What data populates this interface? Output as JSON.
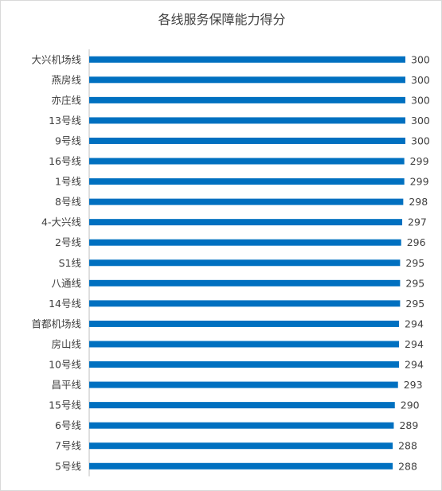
{
  "chart_data": {
    "type": "bar",
    "orientation": "horizontal",
    "title": "各线服务保障能力得分",
    "xlabel": "",
    "ylabel": "",
    "xlim": [
      0,
      300
    ],
    "grid": false,
    "legend": "none",
    "bar_color": "#0070C0",
    "categories": [
      "大兴机场线",
      "燕房线",
      "亦庄线",
      "13号线",
      "9号线",
      "16号线",
      "1号线",
      "8号线",
      "4-大兴线",
      "2号线",
      "S1线",
      "八通线",
      "14号线",
      "首都机场线",
      "房山线",
      "10号线",
      "昌平线",
      "15号线",
      "6号线",
      "7号线",
      "5号线"
    ],
    "values": [
      300,
      300,
      300,
      300,
      300,
      299,
      299,
      298,
      297,
      296,
      295,
      295,
      295,
      294,
      294,
      294,
      293,
      290,
      289,
      288,
      288
    ],
    "value_labels": [
      "300",
      "300",
      "300",
      "300",
      "300",
      "299",
      "299",
      "298",
      "297",
      "296",
      "295",
      "295",
      "295",
      "294",
      "294",
      "294",
      "293",
      "290",
      "289",
      "288",
      "288"
    ]
  }
}
